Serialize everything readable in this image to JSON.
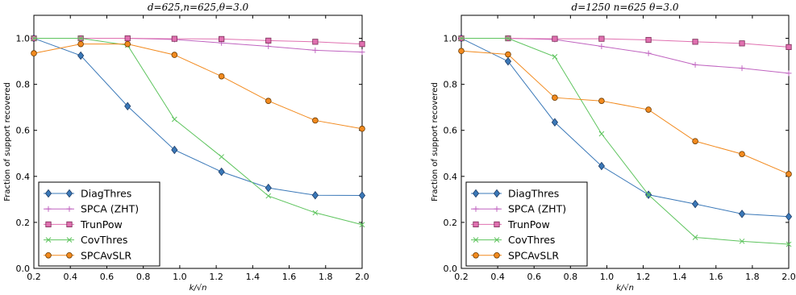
{
  "chart_data": [
    {
      "type": "line",
      "title": "d=625,n=625,θ=3.0",
      "xlabel": "k/√n",
      "ylabel": "Fraction of support recovered",
      "xlim": [
        0.2,
        2.0
      ],
      "ylim": [
        0.0,
        1.1
      ],
      "x_ticks": [
        "0.2",
        "0.4",
        "0.6",
        "0.8",
        "1.0",
        "1.2",
        "1.4",
        "1.6",
        "1.8",
        "2.0"
      ],
      "y_ticks": [
        "0.0",
        "0.2",
        "0.4",
        "0.6",
        "0.8",
        "1.0"
      ],
      "grid": false,
      "legend_position": "lower-left",
      "x": [
        0.2,
        0.457,
        0.714,
        0.971,
        1.229,
        1.486,
        1.743,
        2.0
      ],
      "series": [
        {
          "name": "DiagThres",
          "color": "#3a78b8",
          "marker": "diamond",
          "values": [
            1.0,
            0.925,
            0.705,
            0.515,
            0.42,
            0.35,
            0.318,
            0.317
          ]
        },
        {
          "name": "SPCA (ZHT)",
          "color": "#c064c0",
          "marker": "plus",
          "values": [
            1.0,
            1.0,
            1.0,
            0.995,
            0.98,
            0.965,
            0.948,
            0.94
          ]
        },
        {
          "name": "TrunPow",
          "color": "#e070b0",
          "marker": "square",
          "values": [
            1.0,
            1.0,
            1.0,
            0.998,
            0.997,
            0.99,
            0.985,
            0.975
          ]
        },
        {
          "name": "CovThres",
          "color": "#5ec45e",
          "marker": "x",
          "values": [
            1.0,
            1.0,
            0.97,
            0.648,
            0.485,
            0.315,
            0.242,
            0.19
          ]
        },
        {
          "name": "SPCAvSLR",
          "color": "#f28a1e",
          "marker": "circle",
          "values": [
            0.935,
            0.975,
            0.975,
            0.928,
            0.835,
            0.728,
            0.643,
            0.607
          ]
        }
      ]
    },
    {
      "type": "line",
      "title": "d=1250  n=625  θ=3.0",
      "xlabel": "k/√n",
      "ylabel": "Fraction of support recovered",
      "xlim": [
        0.2,
        2.0
      ],
      "ylim": [
        0.0,
        1.1
      ],
      "x_ticks": [
        "0.2",
        "0.4",
        "0.6",
        "0.8",
        "1.0",
        "1.2",
        "1.4",
        "1.6",
        "1.8",
        "2.0"
      ],
      "y_ticks": [
        "0.0",
        "0.2",
        "0.4",
        "0.6",
        "0.8",
        "1.0"
      ],
      "grid": false,
      "legend_position": "lower-left",
      "x": [
        0.2,
        0.457,
        0.714,
        0.971,
        1.229,
        1.486,
        1.743,
        2.0
      ],
      "series": [
        {
          "name": "DiagThres",
          "color": "#3a78b8",
          "marker": "diamond",
          "values": [
            1.0,
            0.9,
            0.635,
            0.445,
            0.32,
            0.28,
            0.237,
            0.225
          ]
        },
        {
          "name": "SPCA (ZHT)",
          "color": "#c064c0",
          "marker": "plus",
          "values": [
            1.0,
            1.0,
            0.995,
            0.965,
            0.935,
            0.885,
            0.87,
            0.848
          ]
        },
        {
          "name": "TrunPow",
          "color": "#e070b0",
          "marker": "square",
          "values": [
            1.0,
            1.0,
            0.998,
            0.998,
            0.993,
            0.985,
            0.978,
            0.962
          ]
        },
        {
          "name": "CovThres",
          "color": "#5ec45e",
          "marker": "x",
          "values": [
            1.0,
            1.0,
            0.92,
            0.585,
            0.32,
            0.135,
            0.118,
            0.105
          ]
        },
        {
          "name": "SPCAvSLR",
          "color": "#f28a1e",
          "marker": "circle",
          "values": [
            0.945,
            0.93,
            0.742,
            0.728,
            0.69,
            0.553,
            0.497,
            0.41
          ]
        }
      ]
    }
  ]
}
